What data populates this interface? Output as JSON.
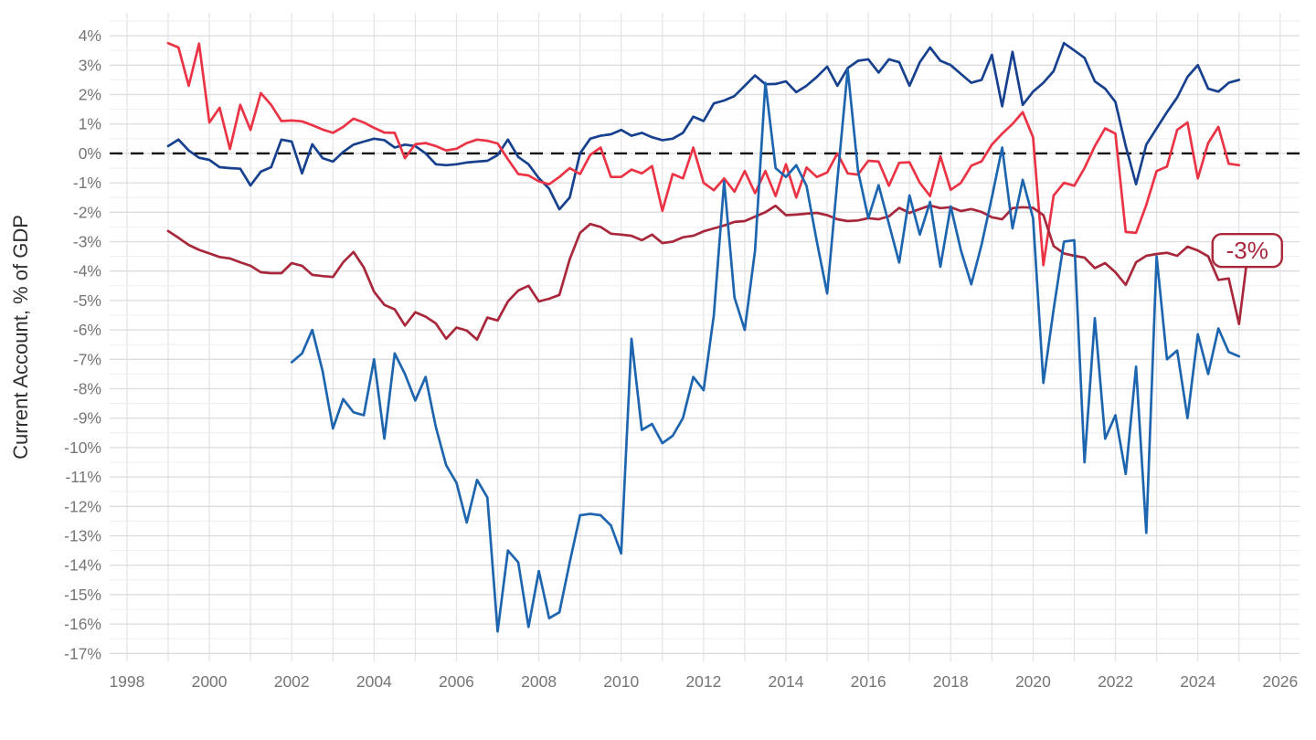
{
  "chart_data": {
    "type": "line",
    "title": "",
    "xlabel": "",
    "ylabel": "Current Account, % of GDP",
    "x_axis": {
      "ticks": [
        1998,
        2000,
        2002,
        2004,
        2006,
        2008,
        2010,
        2012,
        2014,
        2016,
        2018,
        2020,
        2022,
        2024,
        2026
      ],
      "tick_labels": [
        "1998",
        "2000",
        "2002",
        "2004",
        "2006",
        "2008",
        "2010",
        "2012",
        "2014",
        "2016",
        "2018",
        "2020",
        "2022",
        "2024",
        "2026"
      ],
      "minor_grid_step_years": 1,
      "xlim": [
        1997.58,
        2026.47
      ]
    },
    "y_axis": {
      "ticks": [
        4,
        3,
        2,
        1,
        0,
        -1,
        -2,
        -3,
        -4,
        -5,
        -6,
        -7,
        -8,
        -9,
        -10,
        -11,
        -12,
        -13,
        -14,
        -15,
        -16,
        -17
      ],
      "tick_labels": [
        "4%",
        "3%",
        "2%",
        "1%",
        "0%",
        "-1%",
        "-2%",
        "-3%",
        "-4%",
        "-5%",
        "-6%",
        "-7%",
        "-8%",
        "-9%",
        "-10%",
        "-11%",
        "-12%",
        "-13%",
        "-14%",
        "-15%",
        "-16%",
        "-17%"
      ],
      "minor_grid_step": 0.5,
      "ylim": [
        -17.27,
        4.78
      ]
    },
    "grid": {
      "on": true,
      "major_color": "#dcdcdc",
      "minor_color": "#efefef"
    },
    "zero_line": {
      "value": 0,
      "style": "dashed",
      "color": "#0a0a0a"
    },
    "annotation": {
      "label": "-3%",
      "year": 2025.2,
      "value": -3.3,
      "color": "#a8273a",
      "box_fill": "#ffffff"
    },
    "frequency": "quarterly",
    "series": [
      {
        "name": "navy-line",
        "color": "#17418e",
        "start_year": 1999.0,
        "step": 0.25,
        "values": [
          0.25,
          0.47,
          0.1,
          -0.15,
          -0.22,
          -0.47,
          -0.5,
          -0.52,
          -1.09,
          -0.62,
          -0.47,
          0.47,
          0.4,
          -0.68,
          0.31,
          -0.16,
          -0.28,
          0.05,
          0.3,
          0.4,
          0.5,
          0.45,
          0.2,
          0.3,
          0.25,
          0.0,
          -0.37,
          -0.4,
          -0.37,
          -0.31,
          -0.28,
          -0.25,
          -0.06,
          0.47,
          -0.12,
          -0.37,
          -0.84,
          -1.2,
          -1.9,
          -1.5,
          0.0,
          0.5,
          0.6,
          0.65,
          0.8,
          0.6,
          0.7,
          0.55,
          0.45,
          0.5,
          0.7,
          1.25,
          1.1,
          1.7,
          1.8,
          1.95,
          2.3,
          2.65,
          2.35,
          2.36,
          2.45,
          2.08,
          2.3,
          2.6,
          2.95,
          2.3,
          2.9,
          3.15,
          3.2,
          2.75,
          3.2,
          3.1,
          2.3,
          3.1,
          3.6,
          3.15,
          3.0,
          2.7,
          2.4,
          2.5,
          3.35,
          1.6,
          3.45,
          1.65,
          2.1,
          2.4,
          2.8,
          3.75,
          3.5,
          3.25,
          2.45,
          2.2,
          1.75,
          0.25,
          -1.05,
          0.3,
          0.85,
          1.4,
          1.9,
          2.6,
          3.0,
          2.2,
          2.1,
          2.4,
          2.5
        ]
      },
      {
        "name": "red-line",
        "color": "#ea3446",
        "start_year": 1999.0,
        "step": 0.25,
        "values": [
          3.75,
          3.6,
          2.3,
          3.73,
          1.05,
          1.55,
          0.15,
          1.65,
          0.8,
          2.05,
          1.65,
          1.1,
          1.12,
          1.09,
          0.96,
          0.81,
          0.7,
          0.9,
          1.18,
          1.05,
          0.87,
          0.71,
          0.7,
          -0.16,
          0.31,
          0.35,
          0.25,
          0.1,
          0.16,
          0.35,
          0.47,
          0.43,
          0.34,
          -0.2,
          -0.7,
          -0.75,
          -0.95,
          -1.05,
          -0.8,
          -0.5,
          -0.7,
          -0.05,
          0.2,
          -0.8,
          -0.8,
          -0.55,
          -0.68,
          -0.43,
          -1.95,
          -0.7,
          -0.85,
          0.2,
          -1.0,
          -1.25,
          -0.85,
          -1.3,
          -0.6,
          -1.35,
          -0.6,
          -1.45,
          -0.37,
          -1.5,
          -0.48,
          -0.8,
          -0.65,
          0.0,
          -0.68,
          -0.72,
          -0.25,
          -0.28,
          -1.1,
          -0.32,
          -0.3,
          -1.0,
          -1.45,
          -0.1,
          -1.24,
          -1.0,
          -0.42,
          -0.27,
          0.3,
          0.67,
          1.0,
          1.4,
          0.55,
          -3.8,
          -1.43,
          -1.0,
          -1.1,
          -0.5,
          0.25,
          0.85,
          0.67,
          -2.67,
          -2.7,
          -1.75,
          -0.6,
          -0.45,
          0.8,
          1.05,
          -0.85,
          0.35,
          0.9,
          -0.35,
          -0.4
        ]
      },
      {
        "name": "dark-red-line",
        "color": "#a8273a",
        "start_year": 1999.0,
        "step": 0.25,
        "values": [
          -2.64,
          -2.87,
          -3.11,
          -3.28,
          -3.4,
          -3.52,
          -3.57,
          -3.7,
          -3.82,
          -4.04,
          -4.07,
          -4.07,
          -3.73,
          -3.82,
          -4.13,
          -4.17,
          -4.2,
          -3.7,
          -3.35,
          -3.88,
          -4.7,
          -5.15,
          -5.3,
          -5.85,
          -5.4,
          -5.55,
          -5.78,
          -6.3,
          -5.92,
          -6.02,
          -6.33,
          -5.58,
          -5.68,
          -5.03,
          -4.66,
          -4.5,
          -5.03,
          -4.94,
          -4.81,
          -3.6,
          -2.7,
          -2.4,
          -2.5,
          -2.73,
          -2.76,
          -2.8,
          -2.95,
          -2.76,
          -3.05,
          -3.0,
          -2.85,
          -2.8,
          -2.65,
          -2.55,
          -2.45,
          -2.33,
          -2.3,
          -2.15,
          -2.0,
          -1.78,
          -2.1,
          -2.08,
          -2.05,
          -2.02,
          -2.1,
          -2.24,
          -2.3,
          -2.28,
          -2.2,
          -2.24,
          -2.14,
          -1.85,
          -2.02,
          -1.89,
          -1.77,
          -1.86,
          -1.83,
          -1.96,
          -1.89,
          -1.99,
          -2.17,
          -2.24,
          -1.86,
          -1.83,
          -1.85,
          -2.1,
          -3.15,
          -3.4,
          -3.48,
          -3.54,
          -3.9,
          -3.73,
          -4.04,
          -4.47,
          -3.7,
          -3.48,
          -3.42,
          -3.38,
          -3.48,
          -3.17,
          -3.3,
          -3.5,
          -4.3,
          -4.25,
          -5.8,
          -3.0
        ]
      },
      {
        "name": "blue-line",
        "color": "#1d65af",
        "start_year": 2002.0,
        "step": 0.25,
        "values": [
          -7.1,
          -6.8,
          -6.0,
          -7.4,
          -9.35,
          -8.35,
          -8.8,
          -8.9,
          -7.0,
          -9.7,
          -6.8,
          -7.5,
          -8.4,
          -7.6,
          -9.3,
          -10.6,
          -11.2,
          -12.55,
          -11.1,
          -11.7,
          -16.25,
          -13.5,
          -13.9,
          -16.1,
          -14.2,
          -15.8,
          -15.6,
          -13.9,
          -12.3,
          -12.25,
          -12.3,
          -12.65,
          -13.6,
          -6.3,
          -9.4,
          -9.2,
          -9.85,
          -9.6,
          -9.0,
          -7.6,
          -8.05,
          -5.5,
          -0.95,
          -4.9,
          -6.0,
          -3.3,
          2.4,
          -0.5,
          -0.8,
          -0.4,
          -1.1,
          -3.0,
          -4.76,
          -0.9,
          2.86,
          -0.6,
          -2.2,
          -1.08,
          -2.4,
          -3.71,
          -1.43,
          -2.76,
          -1.65,
          -3.85,
          -1.8,
          -3.3,
          -4.45,
          -3.1,
          -1.5,
          0.2,
          -2.55,
          -0.9,
          -2.2,
          -7.8,
          -5.3,
          -3.0,
          -2.95,
          -10.5,
          -5.6,
          -9.7,
          -8.9,
          -10.9,
          -7.25,
          -12.9,
          -3.5,
          -7.0,
          -6.7,
          -9.0,
          -6.15,
          -7.5,
          -5.95,
          -6.75,
          -6.9
        ]
      }
    ],
    "legend": "none"
  }
}
